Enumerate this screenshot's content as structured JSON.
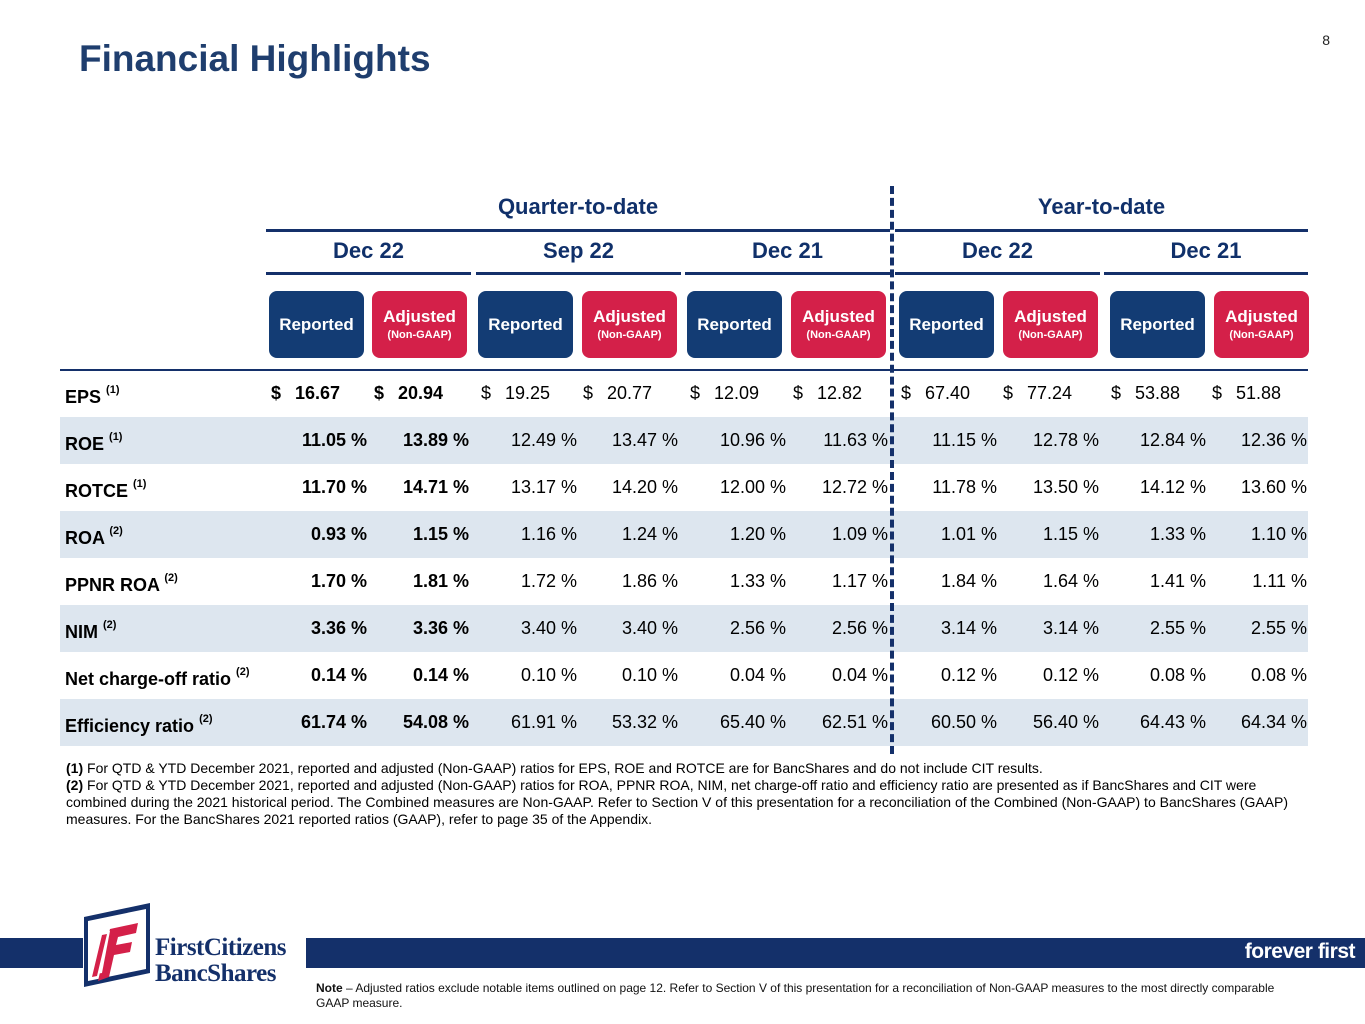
{
  "page_number": "8",
  "title": "Financial Highlights",
  "groups": [
    {
      "label": "Quarter-to-date"
    },
    {
      "label": "Year-to-date"
    }
  ],
  "periods": [
    {
      "label": "Dec 22"
    },
    {
      "label": "Sep 22"
    },
    {
      "label": "Dec 21"
    },
    {
      "label": "Dec 22"
    },
    {
      "label": "Dec 21"
    }
  ],
  "column_pill": {
    "reported": "Reported",
    "adjusted": "Adjusted",
    "adjusted_sub": "(Non-GAAP)"
  },
  "rows": [
    {
      "metric": "EPS",
      "note": "(1)",
      "dollar": "$",
      "values": [
        "16.67",
        "20.94",
        "19.25",
        "20.77",
        "12.09",
        "12.82",
        "67.40",
        "77.24",
        "53.88",
        "51.88"
      ]
    },
    {
      "metric": "ROE",
      "note": "(1)",
      "values": [
        "11.05 %",
        "13.89 %",
        "12.49 %",
        "13.47 %",
        "10.96 %",
        "11.63 %",
        "11.15 %",
        "12.78 %",
        "12.84 %",
        "12.36 %"
      ]
    },
    {
      "metric": "ROTCE",
      "note": "(1)",
      "values": [
        "11.70 %",
        "14.71 %",
        "13.17 %",
        "14.20 %",
        "12.00 %",
        "12.72 %",
        "11.78 %",
        "13.50 %",
        "14.12 %",
        "13.60 %"
      ]
    },
    {
      "metric": "ROA",
      "note": "(2)",
      "values": [
        "0.93 %",
        "1.15 %",
        "1.16 %",
        "1.24 %",
        "1.20 %",
        "1.09 %",
        "1.01 %",
        "1.15 %",
        "1.33 %",
        "1.10 %"
      ]
    },
    {
      "metric": "PPNR ROA",
      "note": "(2)",
      "values": [
        "1.70 %",
        "1.81 %",
        "1.72 %",
        "1.86 %",
        "1.33 %",
        "1.17 %",
        "1.84 %",
        "1.64 %",
        "1.41 %",
        "1.11 %"
      ]
    },
    {
      "metric": "NIM",
      "note": "(2)",
      "values": [
        "3.36 %",
        "3.36 %",
        "3.40 %",
        "3.40 %",
        "2.56 %",
        "2.56 %",
        "3.14 %",
        "3.14 %",
        "2.55 %",
        "2.55 %"
      ]
    },
    {
      "metric": "Net charge-off ratio",
      "note": "(2)",
      "values": [
        "0.14 %",
        "0.14 %",
        "0.10 %",
        "0.10 %",
        "0.04 %",
        "0.04 %",
        "0.12 %",
        "0.12 %",
        "0.08 %",
        "0.08 %"
      ]
    },
    {
      "metric": "Efficiency ratio",
      "note": "(2)",
      "values": [
        "61.74 %",
        "54.08 %",
        "61.91 %",
        "53.32 %",
        "65.40 %",
        "62.51 %",
        "60.50 %",
        "56.40 %",
        "64.43 %",
        "64.34 %"
      ]
    }
  ],
  "footnotes": [
    {
      "marker": "(1)",
      "text": " For QTD & YTD December 2021, reported and adjusted (Non-GAAP) ratios for EPS, ROE and ROTCE are for BancShares and do not include CIT results."
    },
    {
      "marker": "(2)",
      "text": " For QTD & YTD December 2021, reported and adjusted (Non-GAAP) ratios for ROA, PPNR ROA, NIM, net charge-off ratio and efficiency ratio are presented as if BancShares and CIT were combined during the 2021 historical period. The Combined measures are Non-GAAP. Refer to Section V of this presentation for a reconciliation of the Combined (Non-GAAP) to BancShares (GAAP) measures. For the BancShares 2021 reported ratios (GAAP), refer to page 35 of the Appendix."
    }
  ],
  "footer": {
    "logo_line1": "FirstCitizens",
    "logo_line2": "BancShares",
    "tagline": "forever first",
    "note_label": "Note",
    "note_text": " – Adjusted ratios exclude notable items outlined on page 12. Refer to Section V of this presentation for a reconciliation of Non-GAAP measures to the most directly comparable GAAP measure."
  },
  "colors": {
    "navy": "#133c74",
    "red": "#d42049",
    "shade": "#dde6ef",
    "title": "#1f3e6e"
  }
}
